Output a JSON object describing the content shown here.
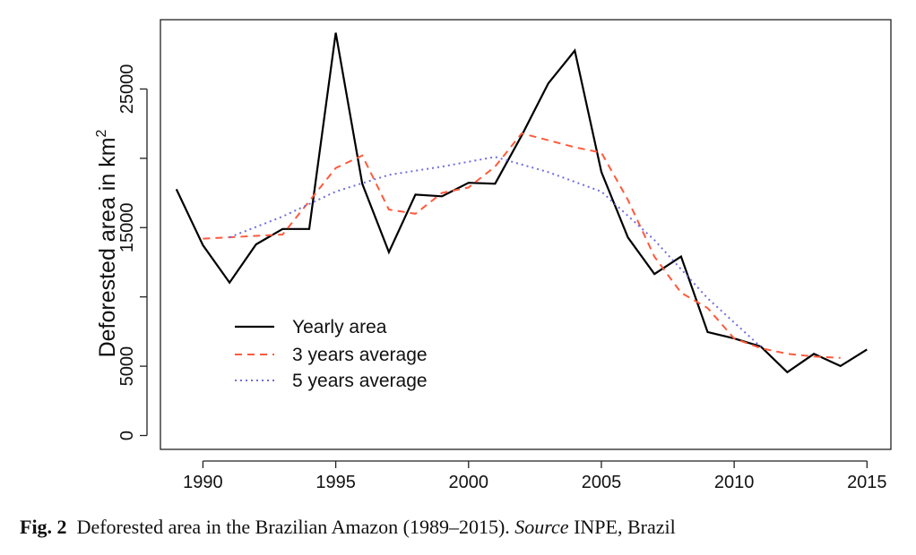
{
  "chart_data": {
    "type": "line",
    "ylabel_main": "Deforested area in km",
    "ylabel_sup": "2",
    "xlim": [
      1988.4,
      2015.9
    ],
    "ylim": [
      -1000,
      30000
    ],
    "xticks": [
      1990,
      1995,
      2000,
      2005,
      2010,
      2015
    ],
    "yticks": [
      0,
      5000,
      15000,
      25000
    ],
    "yticks_minor": [
      10000,
      20000
    ],
    "series": [
      {
        "name": "Yearly area",
        "color": "#000000",
        "style": "solid",
        "x": [
          1989,
          1990,
          1991,
          1992,
          1993,
          1994,
          1995,
          1996,
          1997,
          1998,
          1999,
          2000,
          2001,
          2002,
          2003,
          2004,
          2005,
          2006,
          2007,
          2008,
          2009,
          2010,
          2011,
          2012,
          2013,
          2014,
          2015
        ],
        "y": [
          17770,
          13730,
          11030,
          13790,
          14900,
          14900,
          29060,
          18160,
          13230,
          17380,
          17260,
          18230,
          18170,
          21650,
          25400,
          27770,
          19010,
          14290,
          11650,
          12910,
          7460,
          7000,
          6420,
          4570,
          5890,
          5010,
          6210
        ]
      },
      {
        "name": "3 years average",
        "color": "#ff5a3c",
        "style": "dashed",
        "x": [
          1990,
          1991,
          1992,
          1993,
          1994,
          1995,
          1996,
          1997,
          1998,
          1999,
          2000,
          2001,
          2002,
          2003,
          2004,
          2005,
          2006,
          2007,
          2008,
          2009,
          2010,
          2011,
          2012,
          2013,
          2014
        ],
        "y": [
          14200,
          14300,
          14400,
          14500,
          16900,
          19300,
          20200,
          16300,
          16000,
          17500,
          17900,
          19400,
          21800,
          21300,
          20800,
          20400,
          17000,
          12900,
          10300,
          9200,
          7000,
          6300,
          5900,
          5700,
          5600
        ]
      },
      {
        "name": "5 years average",
        "color": "#6e6ee0",
        "style": "dotted",
        "x": [
          1991,
          1993,
          1995,
          1997,
          1999,
          2001,
          2003,
          2005,
          2007,
          2009,
          2011
        ],
        "y": [
          14300,
          15800,
          17600,
          18800,
          19400,
          20100,
          19000,
          17600,
          14100,
          9900,
          6400
        ]
      }
    ]
  },
  "caption": {
    "fig_label": "Fig. 2",
    "text": "Deforested area in the Brazilian Amazon (1989–2015).",
    "source_label": "Source",
    "source_text": "INPE, Brazil"
  }
}
